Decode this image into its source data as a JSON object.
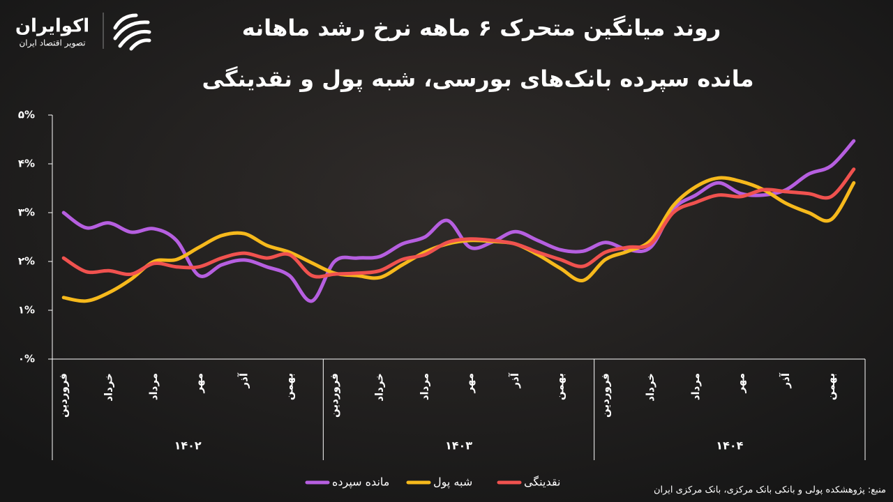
{
  "logo": {
    "name": "اکوایران",
    "tagline": "تصویر اقتصاد ایران"
  },
  "chart_data": {
    "type": "line",
    "title": "روند میانگین متحرک ۶ ماهه نرخ رشد ماهانه",
    "subtitle": "مانده سپرده بانک‌های بورسی، شبه پول و نقدینگی",
    "source": "منبع: پژوهشکده پولی و بانکی بانک مرکزی، بانک مرکزی ایران",
    "categories": [
      "فروردین",
      null,
      "خرداد",
      null,
      "مرداد",
      null,
      "مهر",
      null,
      "آذر",
      null,
      "بهمن",
      null,
      "فروردین",
      null,
      "خرداد",
      null,
      "مرداد",
      null,
      "مهر",
      null,
      "آذر",
      null,
      "بهمن",
      null,
      "فروردین",
      null,
      "خرداد",
      null,
      "مرداد",
      null,
      "مهر",
      null,
      "آذر",
      null,
      "بهمن",
      null
    ],
    "groups": [
      "۱۴۰۲",
      "۱۴۰۳",
      "۱۴۰۴"
    ],
    "ylim": [
      0,
      5
    ],
    "yticks": [
      {
        "value": 0,
        "label": "۰%"
      },
      {
        "value": 1,
        "label": "۱%"
      },
      {
        "value": 2,
        "label": "۲%"
      },
      {
        "value": 3,
        "label": "۳%"
      },
      {
        "value": 4,
        "label": "۴%"
      },
      {
        "value": 5,
        "label": "۵%"
      }
    ],
    "series": [
      {
        "name": "مانده سپرده",
        "color": "#b65fe0",
        "values": [
          3.0,
          2.69,
          2.79,
          2.6,
          2.67,
          2.43,
          1.71,
          1.93,
          2.03,
          1.89,
          1.71,
          1.19,
          2.0,
          2.07,
          2.1,
          2.36,
          2.5,
          2.84,
          2.29,
          2.4,
          2.61,
          2.43,
          2.24,
          2.21,
          2.39,
          2.24,
          2.29,
          3.07,
          3.36,
          3.61,
          3.39,
          3.36,
          3.47,
          3.79,
          3.96,
          4.47
        ]
      },
      {
        "name": "شبه پول",
        "color": "#f6b91c",
        "values": [
          1.26,
          1.19,
          1.36,
          1.64,
          2.0,
          2.04,
          2.29,
          2.53,
          2.57,
          2.33,
          2.19,
          1.97,
          1.76,
          1.71,
          1.67,
          1.93,
          2.19,
          2.36,
          2.43,
          2.41,
          2.36,
          2.14,
          1.86,
          1.61,
          2.04,
          2.21,
          2.43,
          3.14,
          3.53,
          3.71,
          3.64,
          3.47,
          3.19,
          3.0,
          2.86,
          3.61
        ]
      },
      {
        "name": "نقدینگی",
        "color": "#f0524f",
        "values": [
          2.07,
          1.79,
          1.81,
          1.74,
          1.96,
          1.89,
          1.89,
          2.07,
          2.17,
          2.07,
          2.14,
          1.71,
          1.74,
          1.76,
          1.81,
          2.04,
          2.14,
          2.39,
          2.46,
          2.43,
          2.36,
          2.19,
          2.04,
          1.9,
          2.19,
          2.29,
          2.36,
          3.0,
          3.21,
          3.36,
          3.33,
          3.47,
          3.43,
          3.39,
          3.33,
          3.89
        ]
      }
    ]
  }
}
